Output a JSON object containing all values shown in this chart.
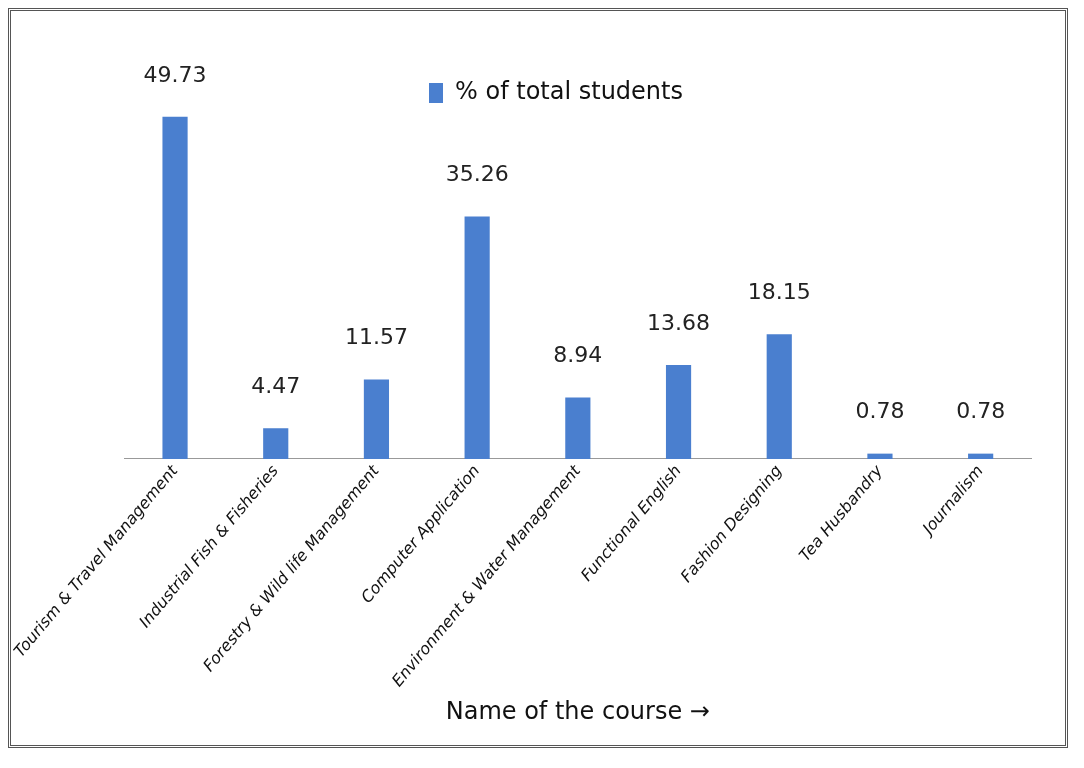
{
  "chart_data": {
    "type": "bar",
    "categories": [
      "Tourism & Travel Management",
      "Industrial Fish & Fisheries",
      "Forestry & Wild life Management",
      "Computer Application",
      "Environment & Water Management",
      "Functional English",
      "Fashion Designing",
      "Tea Husbandry",
      "Journalism"
    ],
    "series": [
      {
        "name": "% of total students",
        "color": "#4a7fcf",
        "values": [
          49.73,
          4.47,
          11.57,
          35.26,
          8.94,
          13.68,
          18.15,
          0.78,
          0.78
        ]
      }
    ],
    "xlabel": "Name of the course →",
    "legend": "top",
    "data_labels": true
  }
}
